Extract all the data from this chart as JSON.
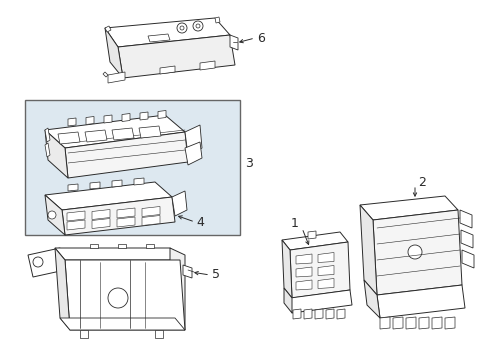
{
  "bg_color": "#ffffff",
  "line_color": "#2a2a2a",
  "box_fill": "#dde8f0",
  "box_border": "#555555",
  "label_fs": 9,
  "lw": 0.6
}
